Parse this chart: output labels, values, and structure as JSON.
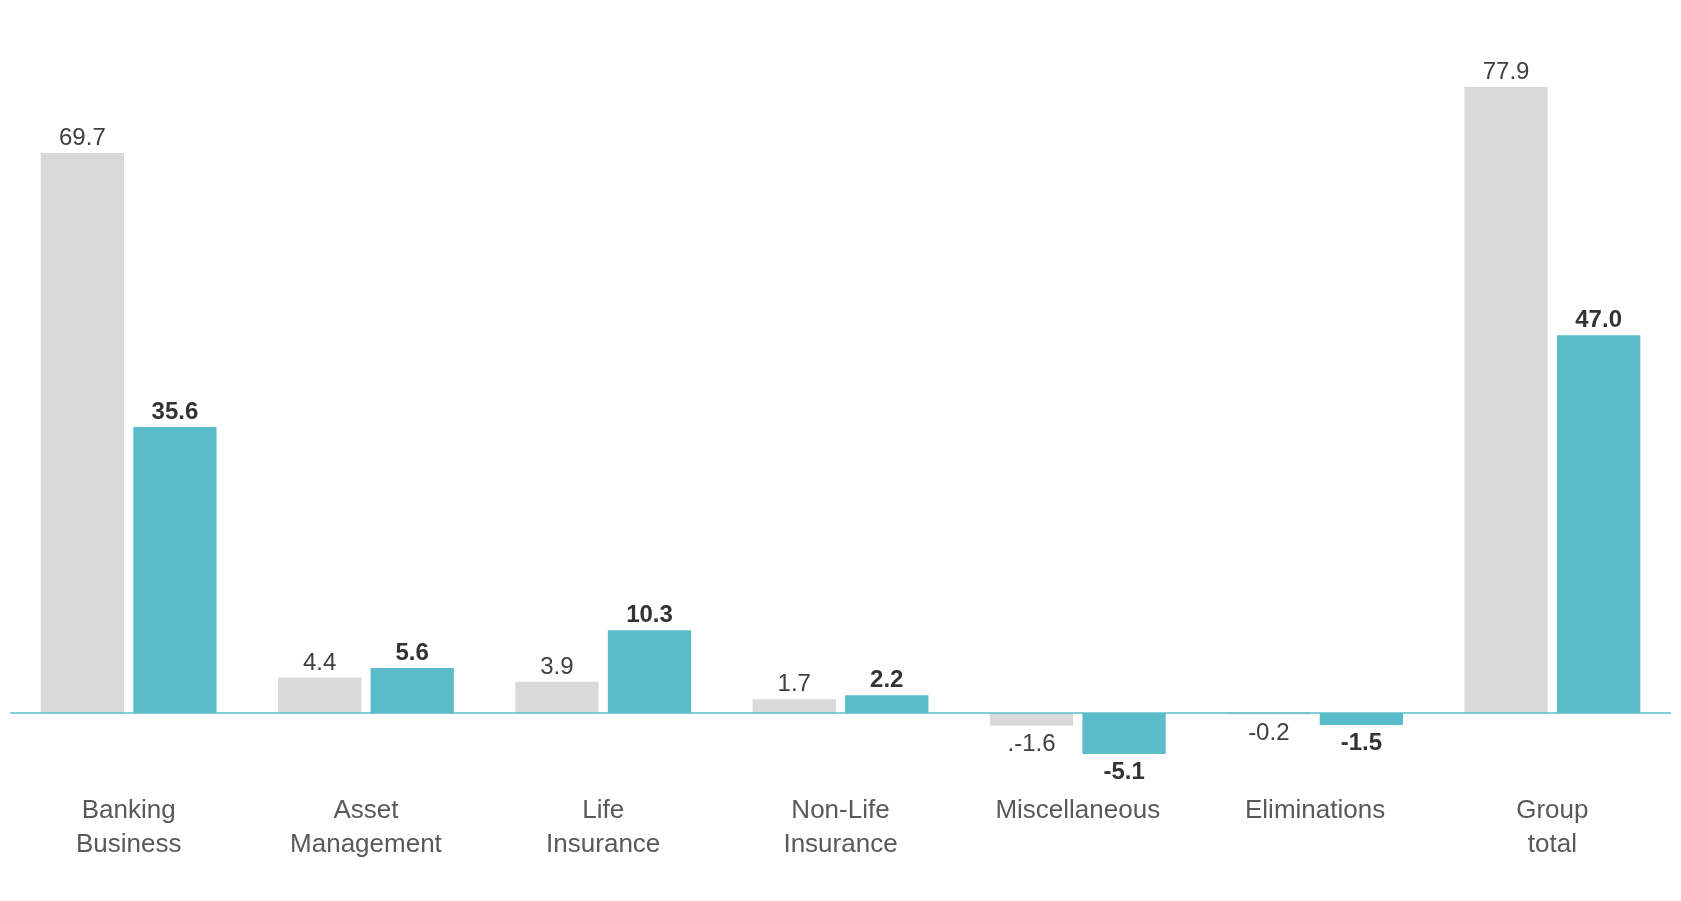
{
  "chart_data": {
    "type": "bar",
    "categories": [
      "Banking Business",
      "Asset Management",
      "Life Insurance",
      "Non-Life Insurance",
      "Miscellaneous",
      "Eliminations",
      "Group total"
    ],
    "series": [
      {
        "color": "#d9d9d9",
        "values": [
          69.7,
          4.4,
          3.9,
          1.7,
          -1.6,
          -0.2,
          77.9
        ],
        "value_labels": [
          "69.7",
          "4.4",
          "3.9",
          "1.7",
          ".-1.6",
          "-0.2",
          "77.9"
        ]
      },
      {
        "color": "#5bbcc9",
        "values": [
          35.6,
          5.6,
          10.3,
          2.2,
          -5.1,
          -1.5,
          47.0
        ],
        "value_labels": [
          "35.6",
          "5.6",
          "10.3",
          "2.2",
          "-5.1",
          "-1.5",
          "47.0"
        ]
      }
    ],
    "ref_lines": [
      {
        "axis": "y",
        "value": 0,
        "color": "#5bbcc9"
      }
    ]
  }
}
